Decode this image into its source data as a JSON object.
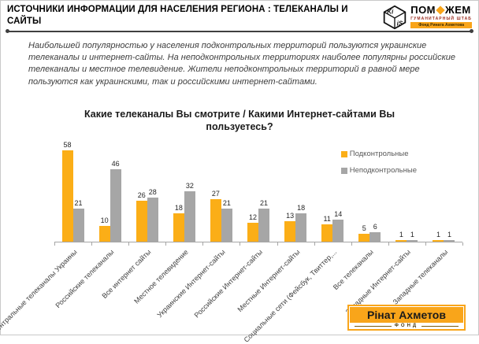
{
  "header": {
    "title": "ИСТОЧНИКИ ИНФОРМАЦИИ ДЛЯ НАСЕЛЕНИЯ РЕГИОНА : ТЕЛЕКАНАЛЫ И САЙТЫ",
    "logo": {
      "kiis_top": "Ki",
      "kiis_bottom": "iS",
      "brand_left": "ПОМ",
      "brand_right": "ЖЕМ",
      "subtitle": "ГУМАНИТАРНЫЙ ШТАБ",
      "banner": "Фонд Рината Ахметова"
    }
  },
  "intro": "Наибольшей популярностью у населения подконтрольных территорий пользуются украинские телеканалы и интернет-сайты. На неподконтрольных территориях наиболее популярны российские телеканалы и местное телевидение. Жители неподконтрольных территорий в равной мере пользуются как украинскими, так и российскими интернет-сайтами.",
  "chart_data": {
    "type": "bar",
    "title": "Какие телеканалы Вы смотрите / Какими Интернет-сайтами Вы пользуетесь?",
    "categories": [
      "Центральные телеканалы Украины",
      "Российские телеканалы",
      "Все интернет сайты",
      "Местное телевидение",
      "Украинские Интернет-сайты",
      "Российские Интернет-сайты",
      "Местные Интернет-сайты",
      "Социальные сети (Фейсбук, Твиттер,...",
      "Все телеканалы",
      "Западные Интернет-сайты",
      "Западные телеканалы"
    ],
    "series": [
      {
        "name": "Подконтрольные",
        "color": "#FBAE17",
        "values": [
          58,
          10,
          26,
          18,
          27,
          12,
          13,
          11,
          5,
          1,
          1
        ]
      },
      {
        "name": "Неподконтрольные",
        "color": "#A6A6A6",
        "values": [
          21,
          46,
          28,
          32,
          21,
          21,
          18,
          14,
          6,
          1,
          1
        ]
      }
    ],
    "xlabel": "",
    "ylabel": "",
    "ylim": [
      0,
      60
    ],
    "grid": false,
    "legend_position": "top-right",
    "value_labels": true
  },
  "footer": {
    "badge_title": "Рінат Ахметов",
    "badge_subtitle": "ФОНД"
  },
  "colors": {
    "accent_orange": "#FBAE17",
    "bar_gray": "#A6A6A6",
    "axis": "#A6A6A6",
    "divider": "#3F3F3F"
  }
}
